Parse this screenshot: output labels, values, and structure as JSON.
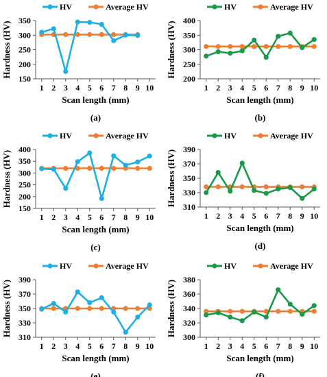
{
  "series_colors": {
    "blue": "#1cb0e6",
    "green": "#1a9a48",
    "orange": "#ee7e32"
  },
  "chart_data": [
    {
      "type": "line",
      "letter": "(a)",
      "title": "",
      "xlabel": "Scan length (mm)",
      "ylabel": "Hardness (HV)",
      "x": [
        1,
        2,
        3,
        4,
        5,
        6,
        7,
        8,
        9
      ],
      "xticks": [
        1,
        2,
        3,
        4,
        5,
        6,
        7,
        8,
        9,
        10
      ],
      "xlim": [
        0.5,
        10.5
      ],
      "ylim": [
        150,
        350
      ],
      "yticks": [
        150,
        200,
        250,
        300,
        350
      ],
      "legend_position": "top",
      "series": [
        {
          "name": "HV",
          "color": "#1cb0e6",
          "values": [
            310,
            322,
            175,
            345,
            344,
            337,
            281,
            300,
            299
          ]
        },
        {
          "name": "Average HV",
          "color": "#ee7e32",
          "values": [
            302,
            302,
            302,
            302,
            302,
            302,
            302,
            302,
            302
          ]
        }
      ]
    },
    {
      "type": "line",
      "letter": "(b)",
      "title": "",
      "xlabel": "Scan length (mm)",
      "ylabel": "Hardness (HV)",
      "x": [
        1,
        2,
        3,
        4,
        5,
        6,
        7,
        8,
        9,
        10
      ],
      "xticks": [
        1,
        2,
        3,
        4,
        5,
        6,
        7,
        8,
        9,
        10
      ],
      "xlim": [
        0.5,
        10.5
      ],
      "ylim": [
        200,
        400
      ],
      "yticks": [
        200,
        250,
        300,
        350,
        400
      ],
      "legend_position": "top",
      "series": [
        {
          "name": "HV",
          "color": "#1a9a48",
          "values": [
            278,
            293,
            288,
            296,
            333,
            274,
            346,
            357,
            307,
            335
          ]
        },
        {
          "name": "Average HV",
          "color": "#ee7e32",
          "values": [
            311,
            311,
            311,
            311,
            311,
            311,
            311,
            311,
            311,
            311
          ]
        }
      ]
    },
    {
      "type": "line",
      "letter": "(c)",
      "title": "",
      "xlabel": "Scan length (mm)",
      "ylabel": "Hardness (HV)",
      "x": [
        1,
        2,
        3,
        4,
        5,
        6,
        7,
        8,
        9,
        10
      ],
      "xticks": [
        1,
        2,
        3,
        4,
        5,
        6,
        7,
        8,
        9,
        10
      ],
      "xlim": [
        0.5,
        10.5
      ],
      "ylim": [
        150,
        400
      ],
      "yticks": [
        150,
        200,
        250,
        300,
        350,
        400
      ],
      "legend_position": "top",
      "series": [
        {
          "name": "HV",
          "color": "#1cb0e6",
          "values": [
            318,
            316,
            235,
            348,
            385,
            192,
            373,
            333,
            347,
            372
          ]
        },
        {
          "name": "Average HV",
          "color": "#ee7e32",
          "values": [
            320,
            320,
            320,
            320,
            320,
            320,
            320,
            320,
            320,
            320
          ]
        }
      ]
    },
    {
      "type": "line",
      "letter": "(d)",
      "title": "",
      "xlabel": "Scan length (mm)",
      "ylabel": "Hardness (HV)",
      "x": [
        1,
        2,
        3,
        4,
        5,
        6,
        7,
        8,
        9,
        10
      ],
      "xticks": [
        1,
        2,
        3,
        4,
        5,
        6,
        7,
        8,
        9,
        10
      ],
      "xlim": [
        0.5,
        10.5
      ],
      "ylim": [
        310,
        390
      ],
      "yticks": [
        310,
        330,
        350,
        370,
        390
      ],
      "legend_position": "top",
      "series": [
        {
          "name": "HV",
          "color": "#1a9a48",
          "values": [
            330,
            358,
            332,
            371,
            333,
            329,
            335,
            337,
            322,
            335
          ]
        },
        {
          "name": "Average HV",
          "color": "#ee7e32",
          "values": [
            338,
            338,
            338,
            338,
            338,
            338,
            338,
            338,
            338,
            338
          ]
        }
      ]
    },
    {
      "type": "line",
      "letter": "(e)",
      "title": "",
      "xlabel": "Scan length (mm)",
      "ylabel": "Hardness (HV)",
      "x": [
        1,
        2,
        3,
        4,
        5,
        6,
        7,
        8,
        9,
        10
      ],
      "xticks": [
        1,
        2,
        3,
        4,
        5,
        6,
        7,
        8,
        9,
        10
      ],
      "xlim": [
        0.5,
        10.5
      ],
      "ylim": [
        310,
        390
      ],
      "yticks": [
        310,
        330,
        350,
        370,
        390
      ],
      "legend_position": "top",
      "series": [
        {
          "name": "HV",
          "color": "#1cb0e6",
          "values": [
            349,
            357,
            345,
            373,
            358,
            365,
            345,
            317,
            338,
            355
          ]
        },
        {
          "name": "Average HV",
          "color": "#ee7e32",
          "values": [
            350,
            350,
            350,
            350,
            350,
            350,
            350,
            350,
            350,
            350
          ]
        }
      ]
    },
    {
      "type": "line",
      "letter": "(f)",
      "title": "",
      "xlabel": "Scan length (mm)",
      "ylabel": "Hardness (HV)",
      "x": [
        1,
        2,
        3,
        4,
        5,
        6,
        7,
        8,
        9,
        10
      ],
      "xticks": [
        1,
        2,
        3,
        4,
        5,
        6,
        7,
        8,
        9,
        10
      ],
      "xlim": [
        0.5,
        10.5
      ],
      "ylim": [
        300,
        380
      ],
      "yticks": [
        300,
        320,
        340,
        360,
        380
      ],
      "legend_position": "top",
      "series": [
        {
          "name": "HV",
          "color": "#1a9a48",
          "values": [
            331,
            334,
            328,
            323,
            335,
            328,
            366,
            346,
            332,
            344
          ]
        },
        {
          "name": "Average HV",
          "color": "#ee7e32",
          "values": [
            336,
            336,
            336,
            336,
            336,
            336,
            336,
            336,
            336,
            336
          ]
        }
      ]
    }
  ]
}
